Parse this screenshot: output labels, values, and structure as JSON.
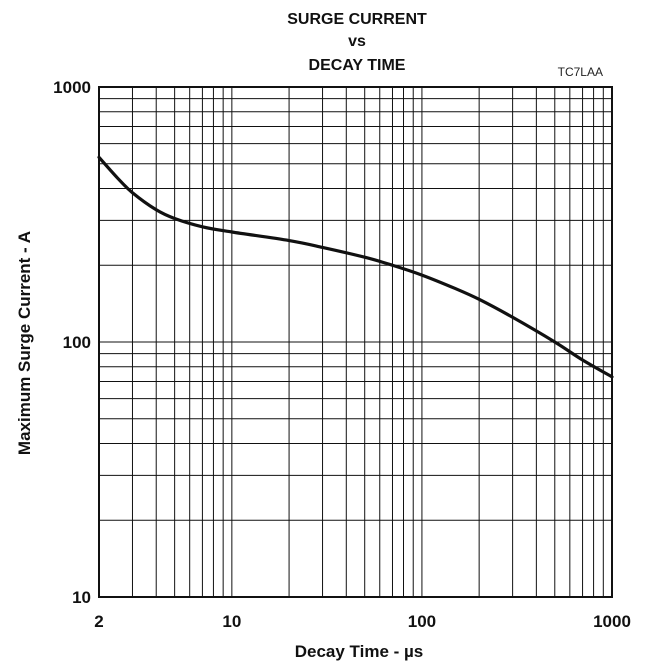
{
  "chart_data": {
    "type": "line",
    "title_lines": [
      "SURGE CURRENT",
      "vs",
      "DECAY TIME"
    ],
    "figure_ref": "TC7LAA",
    "xlabel": "Decay Time - µs",
    "ylabel": "Maximum Surge Current - A",
    "x_scale": "log",
    "y_scale": "log",
    "xlim": [
      2,
      1000
    ],
    "ylim": [
      10,
      1000
    ],
    "x_ticks": [
      {
        "value": 2,
        "label": "2"
      },
      {
        "value": 10,
        "label": "10"
      },
      {
        "value": 100,
        "label": "100"
      },
      {
        "value": 1000,
        "label": "1000"
      }
    ],
    "y_ticks": [
      {
        "value": 10,
        "label": "10"
      },
      {
        "value": 100,
        "label": "100"
      },
      {
        "value": 1000,
        "label": "1000"
      }
    ],
    "grid": true,
    "line_color": "#111111",
    "series": [
      {
        "x": [
          2,
          2.5,
          3,
          4,
          5,
          7,
          10,
          20,
          30,
          50,
          70,
          100,
          150,
          200,
          300,
          500,
          700,
          1000
        ],
        "y": [
          530,
          440,
          385,
          330,
          305,
          283,
          270,
          250,
          235,
          215,
          200,
          183,
          162,
          147,
          125,
          100,
          85,
          73
        ]
      }
    ]
  }
}
